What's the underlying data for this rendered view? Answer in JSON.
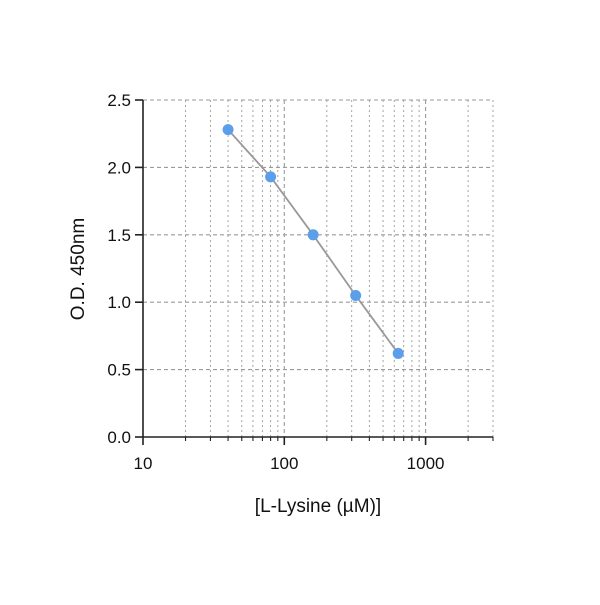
{
  "chart_data": {
    "type": "scatter",
    "title": "",
    "xlabel": "[L-Lysine (µM)]",
    "ylabel": "O.D. 450nm",
    "xscale": "log",
    "xlim": [
      10,
      3000
    ],
    "ylim": [
      0,
      2.5
    ],
    "x_ticks": [
      10,
      100,
      1000
    ],
    "x_tick_labels": [
      "10",
      "100",
      "1000"
    ],
    "y_ticks": [
      0,
      0.5,
      1.0,
      1.5,
      2.0,
      2.5
    ],
    "y_tick_labels": [
      "0.0",
      "0.5",
      "1.0",
      "1.5",
      "2.0",
      "2.5"
    ],
    "grid": true,
    "series": [
      {
        "x": [
          40,
          80,
          160,
          320,
          640
        ],
        "y": [
          2.28,
          1.93,
          1.5,
          1.05,
          0.62
        ]
      }
    ],
    "colors": {
      "point": "#5B9EEA",
      "line": "#999999",
      "grid": "#9a9a9a",
      "axis": "#222222"
    }
  }
}
